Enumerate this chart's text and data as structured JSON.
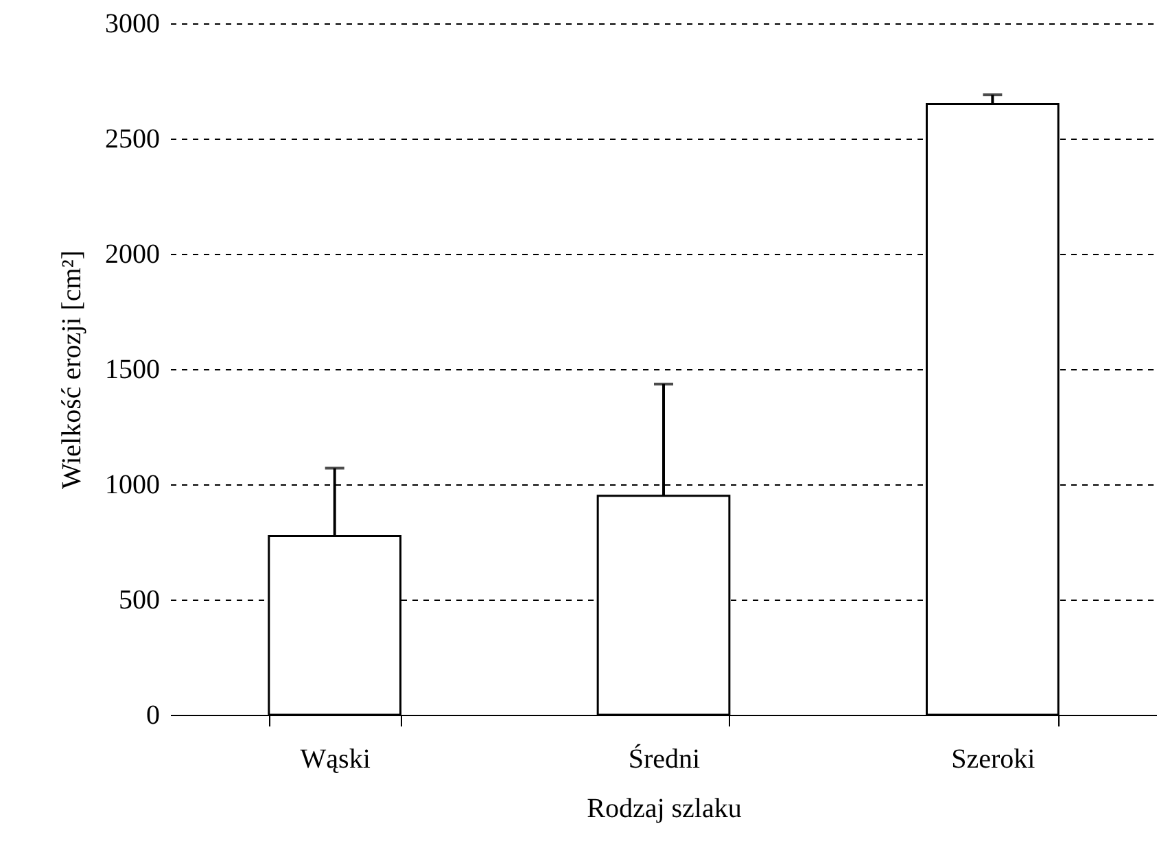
{
  "chart_data": {
    "type": "bar",
    "xlabel": "Rodzaj szlaku",
    "ylabel": "Wielkość erozji [cm²]",
    "categories": [
      "Wąski",
      "Średni",
      "Szeroki"
    ],
    "values": [
      775,
      950,
      2650
    ],
    "errors": [
      [
        775,
        1070
      ],
      [
        950,
        1435
      ],
      [
        2650,
        2690
      ]
    ],
    "color": "#ffffff",
    "ylim": [
      0,
      3000
    ],
    "yticks": [
      0,
      500,
      1000,
      1500,
      2000,
      2500,
      3000
    ],
    "grid": "y"
  }
}
